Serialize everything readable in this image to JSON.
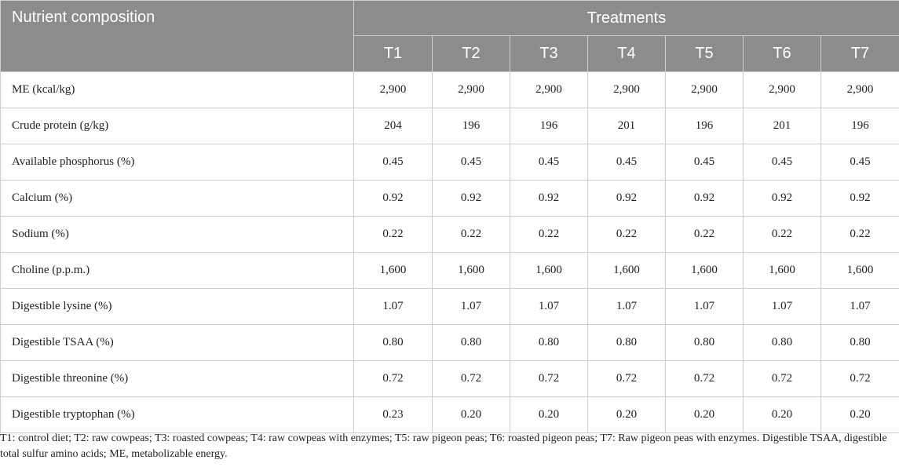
{
  "header": {
    "nutrient_label": "Nutrient composition",
    "treatments_label": "Treatments",
    "treatments": [
      "T1",
      "T2",
      "T3",
      "T4",
      "T5",
      "T6",
      "T7"
    ]
  },
  "rows": [
    {
      "label": "ME (kcal/kg)",
      "values": [
        "2,900",
        "2,900",
        "2,900",
        "2,900",
        "2,900",
        "2,900",
        "2,900"
      ]
    },
    {
      "label": "Crude protein (g/kg)",
      "values": [
        "204",
        "196",
        "196",
        "201",
        "196",
        "201",
        "196"
      ]
    },
    {
      "label": "Available phosphorus (%)",
      "values": [
        "0.45",
        "0.45",
        "0.45",
        "0.45",
        "0.45",
        "0.45",
        "0.45"
      ]
    },
    {
      "label": "Calcium (%)",
      "values": [
        "0.92",
        "0.92",
        "0.92",
        "0.92",
        "0.92",
        "0.92",
        "0.92"
      ]
    },
    {
      "label": "Sodium (%)",
      "values": [
        "0.22",
        "0.22",
        "0.22",
        "0.22",
        "0.22",
        "0.22",
        "0.22"
      ]
    },
    {
      "label": "Choline (p.p.m.)",
      "values": [
        "1,600",
        "1,600",
        "1,600",
        "1,600",
        "1,600",
        "1,600",
        "1,600"
      ]
    },
    {
      "label": "Digestible lysine (%)",
      "values": [
        "1.07",
        "1.07",
        "1.07",
        "1.07",
        "1.07",
        "1.07",
        "1.07"
      ]
    },
    {
      "label": "Digestible TSAA (%)",
      "values": [
        "0.80",
        "0.80",
        "0.80",
        "0.80",
        "0.80",
        "0.80",
        "0.80"
      ]
    },
    {
      "label": "Digestible threonine (%)",
      "values": [
        "0.72",
        "0.72",
        "0.72",
        "0.72",
        "0.72",
        "0.72",
        "0.72"
      ]
    },
    {
      "label": "Digestible tryptophan (%)",
      "values": [
        "0.23",
        "0.20",
        "0.20",
        "0.20",
        "0.20",
        "0.20",
        "0.20"
      ]
    }
  ],
  "footnote": "T1: control diet; T2: raw cowpeas; T3: roasted cowpeas; T4: raw cowpeas with enzymes; T5: raw pigeon peas; T6: roasted pigeon peas; T7: Raw pigeon peas with enzymes. Digestible TSAA, digestible total sulfur amino acids; ME, metabolizable energy."
}
